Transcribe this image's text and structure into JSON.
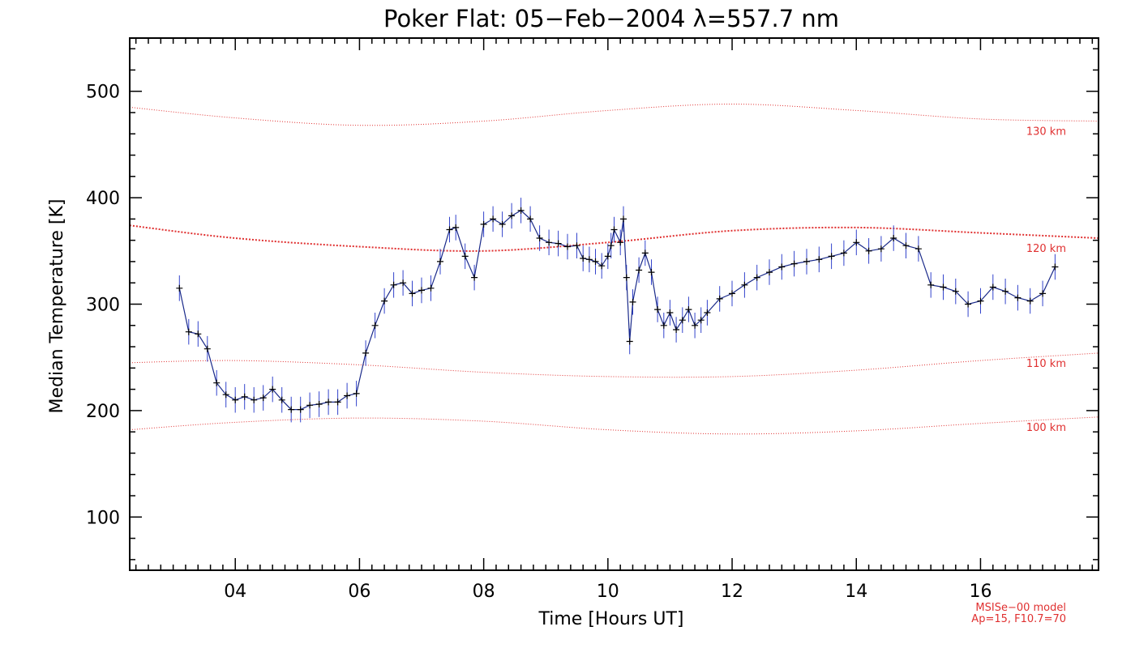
{
  "chart_data": {
    "type": "line",
    "title": "Poker Flat: 05−Feb−2004 λ=557.7 nm",
    "xlabel": "Time [Hours UT]",
    "ylabel": "Median Temperature [K]",
    "xlim": [
      2.3,
      17.9
    ],
    "ylim": [
      50,
      550
    ],
    "xticks": [
      4,
      6,
      8,
      10,
      12,
      14,
      16
    ],
    "xtick_labels": [
      "04",
      "06",
      "08",
      "10",
      "12",
      "14",
      "16"
    ],
    "yticks": [
      100,
      200,
      300,
      400,
      500
    ],
    "ytick_labels": [
      "100",
      "200",
      "300",
      "400",
      "500"
    ],
    "series": [
      {
        "name": "Median Temperature",
        "color": "#1a2a8a",
        "marker": "plus",
        "error": 12,
        "x": [
          3.1,
          3.25,
          3.4,
          3.55,
          3.7,
          3.85,
          4.0,
          4.15,
          4.3,
          4.45,
          4.6,
          4.75,
          4.9,
          5.05,
          5.2,
          5.35,
          5.5,
          5.65,
          5.8,
          5.95,
          6.1,
          6.25,
          6.4,
          6.55,
          6.7,
          6.85,
          7.0,
          7.15,
          7.3,
          7.45,
          7.55,
          7.7,
          7.85,
          8.0,
          8.15,
          8.3,
          8.45,
          8.6,
          8.75,
          8.9,
          9.05,
          9.2,
          9.35,
          9.5,
          9.6,
          9.7,
          9.8,
          9.9,
          10.0,
          10.05,
          10.1,
          10.2,
          10.25,
          10.3,
          10.35,
          10.4,
          10.5,
          10.6,
          10.7,
          10.8,
          10.9,
          11.0,
          11.1,
          11.2,
          11.3,
          11.4,
          11.5,
          11.6,
          11.8,
          12.0,
          12.2,
          12.4,
          12.6,
          12.8,
          13.0,
          13.2,
          13.4,
          13.6,
          13.8,
          14.0,
          14.2,
          14.4,
          14.6,
          14.8,
          15.0,
          15.2,
          15.4,
          15.6,
          15.8,
          16.0,
          16.2,
          16.4,
          16.6,
          16.8,
          17.0,
          17.2
        ],
        "y": [
          315,
          274,
          272,
          258,
          226,
          215,
          210,
          213,
          210,
          212,
          220,
          210,
          201,
          201,
          205,
          206,
          208,
          208,
          214,
          216,
          254,
          280,
          303,
          318,
          320,
          310,
          313,
          315,
          340,
          370,
          372,
          345,
          325,
          375,
          380,
          375,
          383,
          388,
          380,
          362,
          358,
          357,
          354,
          355,
          343,
          342,
          340,
          336,
          345,
          355,
          370,
          358,
          380,
          325,
          265,
          302,
          332,
          348,
          330,
          295,
          280,
          292,
          276,
          285,
          295,
          280,
          285,
          292,
          305,
          310,
          318,
          325,
          330,
          335,
          338,
          340,
          342,
          345,
          348,
          358,
          350,
          352,
          362,
          355,
          352,
          318,
          316,
          312,
          300,
          303,
          316,
          312,
          306,
          303,
          310,
          335
        ]
      }
    ],
    "model_curves": [
      {
        "label": "130 km",
        "color": "#e03030",
        "x": [
          2.3,
          4,
          6,
          8,
          10,
          12,
          14,
          16,
          17.9
        ],
        "y": [
          485,
          475,
          468,
          472,
          482,
          488,
          482,
          474,
          472
        ]
      },
      {
        "label": "120 km",
        "color": "#e03030",
        "x": [
          2.3,
          4,
          6,
          8,
          10,
          12,
          14,
          16,
          17.9
        ],
        "y": [
          374,
          362,
          354,
          350,
          358,
          369,
          372,
          367,
          362
        ]
      },
      {
        "label": "110 km",
        "color": "#e03030",
        "x": [
          2.3,
          4,
          6,
          8,
          10,
          12,
          14,
          16,
          17.9
        ],
        "y": [
          245,
          247,
          243,
          236,
          232,
          232,
          238,
          247,
          254
        ]
      },
      {
        "label": "100 km",
        "color": "#e03030",
        "x": [
          2.3,
          4,
          6,
          8,
          10,
          12,
          14,
          16,
          17.9
        ],
        "y": [
          182,
          189,
          193,
          190,
          182,
          178,
          181,
          188,
          194
        ]
      }
    ],
    "annotations": [
      "MSISe−00 model",
      "Ap=15, F10.7=70"
    ]
  }
}
